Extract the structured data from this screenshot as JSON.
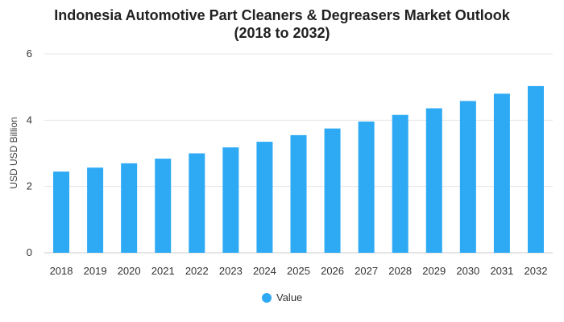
{
  "chart_data": {
    "type": "bar",
    "title_line1": "Indonesia Automotive Part Cleaners & Degreasers Market Outlook",
    "title_line2": "(2018 to 2032)",
    "xlabel": "",
    "ylabel": "USD USD Billion",
    "ylim": [
      0,
      6
    ],
    "yticks": [
      "0",
      "2",
      "4",
      "6"
    ],
    "categories": [
      "2018",
      "2019",
      "2020",
      "2021",
      "2022",
      "2023",
      "2024",
      "2025",
      "2026",
      "2027",
      "2028",
      "2029",
      "2030",
      "2031",
      "2032"
    ],
    "series": [
      {
        "name": "Value",
        "color": "#2eaaf5",
        "values": [
          2.45,
          2.57,
          2.7,
          2.84,
          3.0,
          3.18,
          3.35,
          3.55,
          3.75,
          3.96,
          4.16,
          4.36,
          4.58,
          4.8,
          5.03
        ]
      }
    ],
    "grid": true,
    "legend_position": "bottom"
  }
}
